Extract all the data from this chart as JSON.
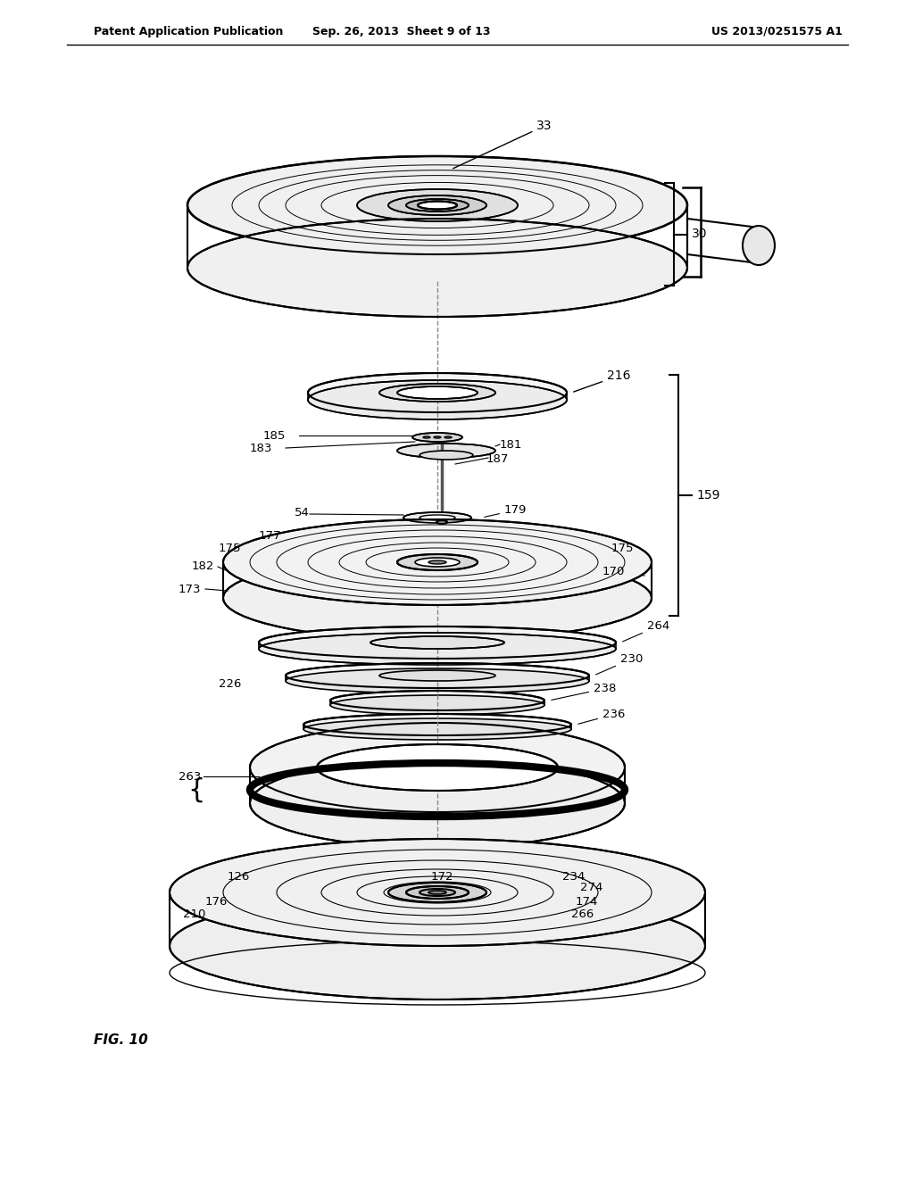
{
  "title_left": "Patent Application Publication",
  "title_mid": "Sep. 26, 2013  Sheet 9 of 13",
  "title_right": "US 2013/0251575 A1",
  "fig_label": "FIG. 10",
  "background": "#ffffff"
}
